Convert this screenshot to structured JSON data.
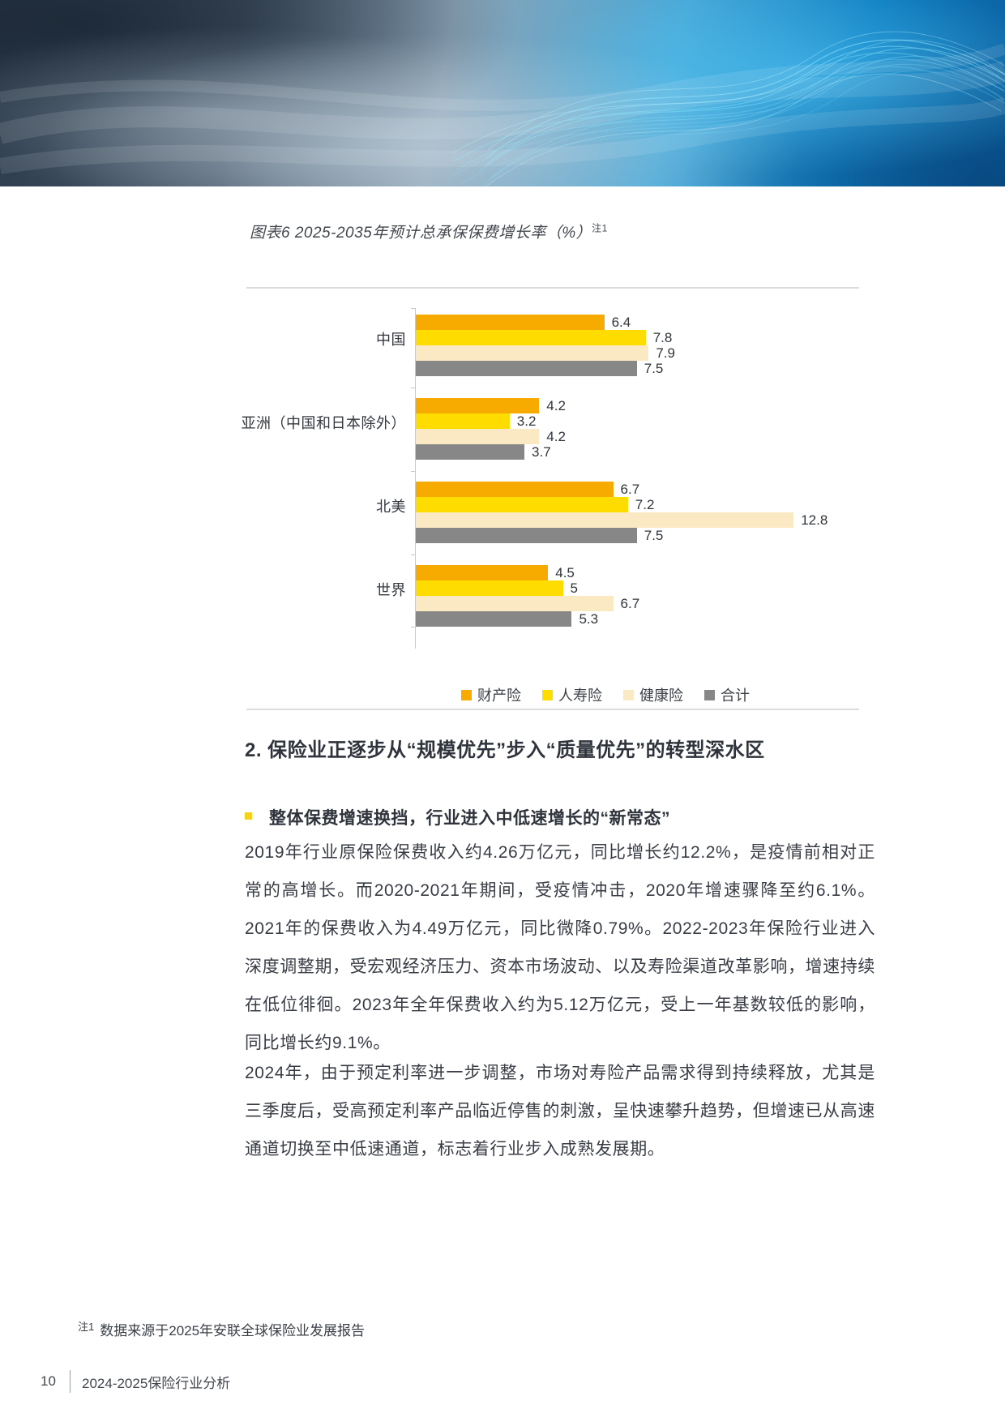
{
  "figure": {
    "title": "图表6 2025-2035年预计总承保保费增长率（%）",
    "note_marker": "注1"
  },
  "chart_data": {
    "type": "bar",
    "orientation": "horizontal",
    "title": "图表6 2025-2035年预计总承保保费增长率（%）",
    "categories": [
      "中国",
      "亚洲（中国和日本除外）",
      "北美",
      "世界"
    ],
    "series": [
      {
        "name": "财产险",
        "color": "#F7AB00",
        "values": [
          6.4,
          4.2,
          6.7,
          4.5
        ]
      },
      {
        "name": "人寿险",
        "color": "#FFDC00",
        "values": [
          7.8,
          3.2,
          7.2,
          5
        ]
      },
      {
        "name": "健康险",
        "color": "#FBE9C3",
        "values": [
          7.9,
          4.2,
          12.8,
          6.7
        ]
      },
      {
        "name": "合计",
        "color": "#878787",
        "values": [
          7.5,
          3.7,
          7.5,
          5.3
        ]
      }
    ],
    "xlim": [
      0,
      13.5
    ],
    "value_labels": true,
    "legend_position": "bottom",
    "grid": false
  },
  "section": {
    "heading": "2. 保险业正逐步从“规模优先”步入“质量优先”的转型深水区",
    "bullet_heading": "整体保费增速换挡，行业进入中低速增长的“新常态”",
    "paragraph1": "2019年行业原保险保费收入约4.26万亿元，同比增长约12.2%，是疫情前相对正常的高增长。而2020-2021年期间，受疫情冲击，2020年增速骤降至约6.1%。2021年的保费收入为4.49万亿元，同比微降0.79%。2022-2023年保险行业进入深度调整期，受宏观经济压力、资本市场波动、以及寿险渠道改革影响，增速持续在低位徘徊。2023年全年保费收入约为5.12万亿元，受上一年基数较低的影响，同比增长约9.1%。",
    "paragraph2": "2024年，由于预定利率进一步调整，市场对寿险产品需求得到持续释放，尤其是三季度后，受高预定利率产品临近停售的刺激，呈快速攀升趋势，但增速已从高速通道切换至中低速通道，标志着行业步入成熟发展期。"
  },
  "footnote": {
    "marker": "注1",
    "text": "数据来源于2025年安联全球保险业发展报告"
  },
  "footer": {
    "page_number": "10",
    "doc_title": "2024-2025保险行业分析"
  }
}
